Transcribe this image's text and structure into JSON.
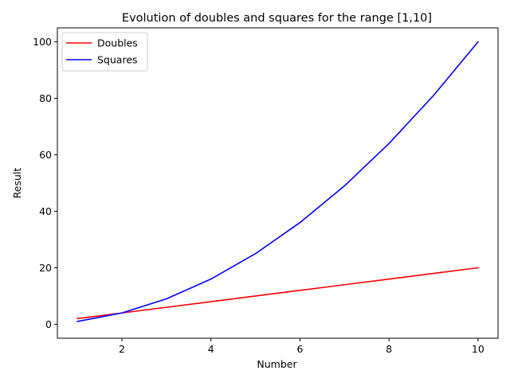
{
  "chart_data": {
    "type": "line",
    "title": "Evolution of doubles and squares for the range [1,10]",
    "xlabel": "Number",
    "ylabel": "Result",
    "x": [
      1,
      2,
      3,
      4,
      5,
      6,
      7,
      8,
      9,
      10
    ],
    "xlim": [
      0.55,
      10.45
    ],
    "ylim": [
      -4.95,
      104.95
    ],
    "xticks": [
      2,
      4,
      6,
      8,
      10
    ],
    "yticks": [
      0,
      20,
      40,
      60,
      80,
      100
    ],
    "grid": false,
    "legend": "top-left",
    "series": [
      {
        "name": "Doubles",
        "color": "#ff0000",
        "values": [
          2,
          4,
          6,
          8,
          10,
          12,
          14,
          16,
          18,
          20
        ]
      },
      {
        "name": "Squares",
        "color": "#0000ff",
        "values": [
          1,
          4,
          9,
          16,
          25,
          36,
          49,
          64,
          81,
          100
        ]
      }
    ]
  }
}
